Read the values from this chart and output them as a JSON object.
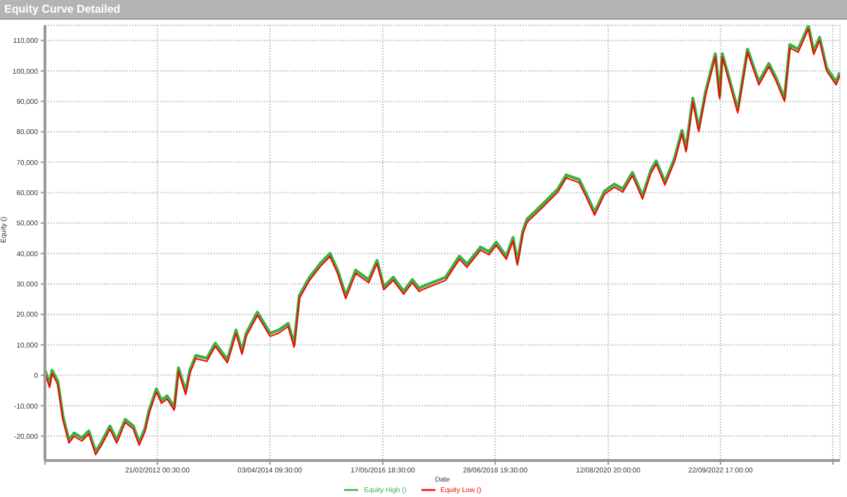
{
  "chart_data": {
    "type": "line",
    "title": "Equity Curve Detailed",
    "xlabel": "Date",
    "ylabel": "Equity ()",
    "x": [
      "2010-01-12",
      "2010-02-11",
      "2010-02-28",
      "2010-04-08",
      "2010-05-14",
      "2010-06-24",
      "2010-07-29",
      "2010-09-20",
      "2010-11-07",
      "2010-12-24",
      "2011-02-03",
      "2011-04-01",
      "2011-05-18",
      "2011-07-15",
      "2011-09-09",
      "2011-10-19",
      "2011-11-28",
      "2011-12-27",
      "2012-02-14",
      "2012-03-20",
      "2012-04-28",
      "2012-06-16",
      "2012-07-15",
      "2012-09-02",
      "2012-10-01",
      "2012-11-11",
      "2013-01-26",
      "2013-03-24",
      "2013-06-16",
      "2013-08-14",
      "2013-09-24",
      "2013-10-23",
      "2014-01-08",
      "2014-04-05",
      "2014-06-02",
      "2014-08-07",
      "2014-09-17",
      "2014-10-23",
      "2015-01-01",
      "2015-03-17",
      "2015-05-21",
      "2015-07-12",
      "2015-09-06",
      "2015-11-14",
      "2016-02-11",
      "2016-04-08",
      "2016-05-25",
      "2016-07-29",
      "2016-10-08",
      "2016-12-06",
      "2017-01-23",
      "2017-02-11",
      "2017-07-23",
      "2017-10-26",
      "2017-12-17",
      "2018-03-20",
      "2018-05-18",
      "2018-07-05",
      "2018-09-13",
      "2018-10-29",
      "2018-11-28",
      "2019-01-05",
      "2019-02-03",
      "2019-05-29",
      "2019-09-02",
      "2019-10-29",
      "2020-01-26",
      "2020-03-13",
      "2020-05-11",
      "2020-07-19",
      "2020-09-24",
      "2020-11-21",
      "2021-01-26",
      "2021-04-05",
      "2021-06-02",
      "2021-07-08",
      "2021-09-06",
      "2021-11-11",
      "2022-01-01",
      "2022-01-29",
      "2022-03-17",
      "2022-04-26",
      "2022-06-13",
      "2022-07-12",
      "2022-08-18",
      "2022-09-17",
      "2022-10-05",
      "2022-12-02",
      "2023-01-19",
      "2023-03-27",
      "2023-06-13",
      "2023-08-21",
      "2023-10-08",
      "2023-12-06",
      "2024-01-12",
      "2024-03-09",
      "2024-05-18",
      "2024-06-24",
      "2024-08-03",
      "2024-09-20",
      "2024-11-25",
      "2024-12-20"
    ],
    "series": [
      {
        "name": "Equity High ()",
        "color": "#3cb043",
        "values": [
          1500,
          -3000,
          1600,
          -2000,
          -13700,
          -21300,
          -19000,
          -20600,
          -18300,
          -25100,
          -22000,
          -16700,
          -21300,
          -14500,
          -16700,
          -22000,
          -17500,
          -11400,
          -4500,
          -8200,
          -6800,
          -10500,
          2400,
          -5300,
          1600,
          6500,
          5600,
          10500,
          5100,
          14800,
          7900,
          13800,
          20700,
          13800,
          14800,
          17000,
          10200,
          26200,
          32200,
          36800,
          40000,
          34500,
          26200,
          34500,
          31400,
          37700,
          29100,
          32200,
          27600,
          31400,
          28500,
          29100,
          32200,
          39100,
          36500,
          42100,
          40600,
          43700,
          39100,
          45200,
          37200,
          47500,
          51300,
          56600,
          61200,
          65800,
          64300,
          59700,
          53600,
          60500,
          62800,
          61200,
          66600,
          58900,
          67400,
          70400,
          63500,
          71200,
          80400,
          74400,
          91000,
          81100,
          93300,
          98700,
          105600,
          91800,
          105600,
          95600,
          87200,
          107100,
          96400,
          102400,
          97800,
          91000,
          108600,
          107100,
          114800,
          106400,
          111000,
          101000,
          96400,
          99500
        ]
      },
      {
        "name": "Equity Low ()",
        "color": "#ff0000",
        "values": [
          500,
          -4000,
          600,
          -3000,
          -14700,
          -22300,
          -20000,
          -21600,
          -19300,
          -26100,
          -23000,
          -17700,
          -22300,
          -15500,
          -17700,
          -23000,
          -18500,
          -12400,
          -5500,
          -9200,
          -7800,
          -11500,
          1400,
          -6300,
          600,
          5500,
          4600,
          9500,
          4100,
          13800,
          6900,
          12800,
          19700,
          12800,
          13800,
          16000,
          9200,
          25200,
          31200,
          35800,
          39000,
          33500,
          25200,
          33500,
          30400,
          36700,
          28100,
          31200,
          26600,
          30400,
          27500,
          28100,
          31200,
          38100,
          35500,
          41100,
          39600,
          42700,
          38100,
          44200,
          36200,
          46500,
          50300,
          55600,
          60200,
          64800,
          63300,
          58700,
          52600,
          59500,
          61800,
          60200,
          65600,
          57900,
          66400,
          69400,
          62500,
          70200,
          79400,
          73400,
          90000,
          80100,
          92300,
          97700,
          104600,
          90800,
          104600,
          94600,
          86200,
          106100,
          95400,
          101400,
          96800,
          90000,
          107600,
          106100,
          113800,
          105400,
          110000,
          100000,
          95400,
          98500
        ]
      }
    ],
    "xlim": [
      "2010-01-10",
      "2024-12-21"
    ],
    "xticks": [
      {
        "value": "2010-01-10",
        "label": null
      },
      {
        "value": "2012-02-21T00:30",
        "label": "21/02/2012 00:30:00"
      },
      {
        "value": "2014-04-03T09:30",
        "label": "03/04/2014 09:30:00"
      },
      {
        "value": "2016-05-17T18:30",
        "label": "17/05/2016 18:30:00"
      },
      {
        "value": "2018-06-28T19:30",
        "label": "28/06/2018 19:30:00"
      },
      {
        "value": "2020-08-12T20:00",
        "label": "12/08/2020 20:00:00"
      },
      {
        "value": "2022-09-22T17:00",
        "label": "22/09/2022 17:00:00"
      },
      {
        "value": "2024-11-02",
        "label": null
      }
    ],
    "ylim": [
      -28000,
      115000
    ],
    "yticks": [
      {
        "value": -20000,
        "label": "-20,000"
      },
      {
        "value": -10000,
        "label": "-10,000"
      },
      0,
      {
        "value": 10000,
        "label": "10,000"
      },
      {
        "value": 20000,
        "label": "20,000"
      },
      {
        "value": 30000,
        "label": "30,000"
      },
      {
        "value": 40000,
        "label": "40,000"
      },
      {
        "value": 50000,
        "label": "50,000"
      },
      {
        "value": 60000,
        "label": "60,000"
      },
      {
        "value": 70000,
        "label": "70,000"
      },
      {
        "value": 80000,
        "label": "80,000"
      },
      {
        "value": 90000,
        "label": "90,000"
      },
      {
        "value": 100000,
        "label": "100,000"
      },
      {
        "value": 110000,
        "label": "110,000"
      }
    ],
    "grid": true,
    "legend": "bottom",
    "line_style": "solid"
  }
}
